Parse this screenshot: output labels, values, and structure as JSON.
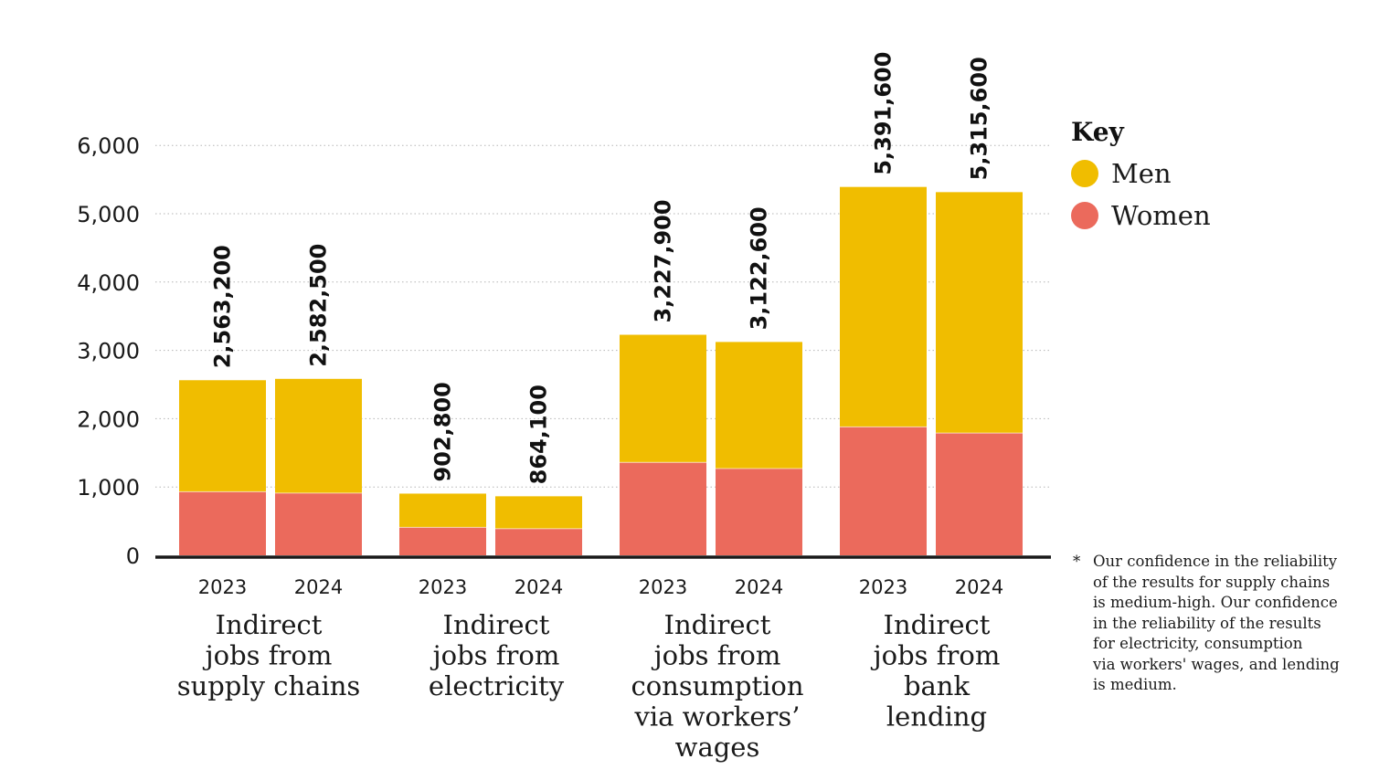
{
  "chart_data": {
    "type": "bar",
    "stacked": true,
    "ylim": [
      0,
      6000
    ],
    "y_ticks": [
      "0",
      "1,000",
      "2,000",
      "3,000",
      "4,000",
      "5,000",
      "6,000"
    ],
    "y_tick_values": [
      0,
      1000,
      2000,
      3000,
      4000,
      5000,
      6000
    ],
    "grid": "dotted horizontal",
    "groups": [
      {
        "label_lines": [
          "Indirect",
          "jobs from",
          "supply chains"
        ],
        "bars": [
          {
            "year": "2023",
            "women": 930,
            "men": 1633,
            "total_label": "2,563,200"
          },
          {
            "year": "2024",
            "women": 910,
            "men": 1673,
            "total_label": "2,582,500"
          }
        ]
      },
      {
        "label_lines": [
          "Indirect",
          "jobs from",
          "electricity"
        ],
        "bars": [
          {
            "year": "2023",
            "women": 410,
            "men": 493,
            "total_label": "902,800"
          },
          {
            "year": "2024",
            "women": 390,
            "men": 474,
            "total_label": "864,100"
          }
        ]
      },
      {
        "label_lines": [
          "Indirect",
          "jobs from",
          "consumption",
          "via workers’",
          "wages"
        ],
        "bars": [
          {
            "year": "2023",
            "women": 1360,
            "men": 1868,
            "total_label": "3,227,900"
          },
          {
            "year": "2024",
            "women": 1270,
            "men": 1853,
            "total_label": "3,122,600"
          }
        ]
      },
      {
        "label_lines": [
          "Indirect",
          "jobs from",
          "bank",
          "lending"
        ],
        "bars": [
          {
            "year": "2023",
            "women": 1880,
            "men": 3512,
            "total_label": "5,391,600"
          },
          {
            "year": "2024",
            "women": 1790,
            "men": 3526,
            "total_label": "5,315,600"
          }
        ]
      }
    ],
    "series": [
      {
        "name": "Men",
        "key": "men",
        "color": "#f0bd00"
      },
      {
        "name": "Women",
        "key": "women",
        "color": "#eb6a5c"
      }
    ]
  },
  "legend": {
    "title": "Key",
    "items": [
      {
        "label": "Men",
        "color": "#f0bd00"
      },
      {
        "label": "Women",
        "color": "#eb6a5c"
      }
    ]
  },
  "footnote": {
    "marker": "*",
    "lines": [
      "Our confidence in the reliability",
      "of the results for supply chains",
      "is medium-high. Our confidence",
      "in the reliability of the results",
      "for electricity, consumption",
      "via workers' wages, and lending",
      "is medium."
    ]
  }
}
